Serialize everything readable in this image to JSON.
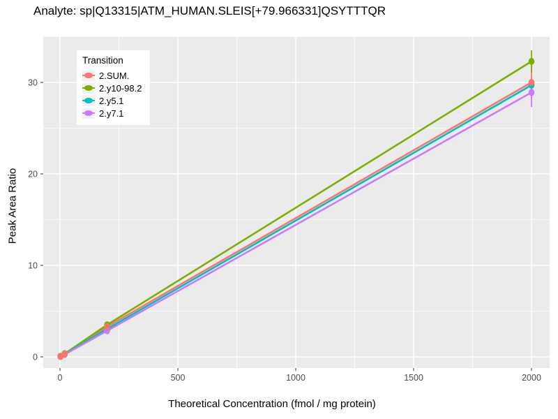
{
  "colors": {
    "panel_bg": "#EBEBEB",
    "grid": "#FFFFFF",
    "tick_label": "#4D4D4D",
    "text": "#000000",
    "legend_bg": "#FFFFFF",
    "legend_key_bg": "#F2F2F2"
  },
  "chart_data": {
    "type": "line",
    "title": "Analyte: sp|Q13315|ATM_HUMAN.SLEIS[+79.966331]QSYTTTQR",
    "xlabel": "Theoretical Concentration (fmol / mg protein)",
    "ylabel": "Peak Area Ratio",
    "xlim": [
      -71,
      2075
    ],
    "ylim": [
      -1.2,
      35.1
    ],
    "x_ticks": [
      0,
      500,
      1000,
      1500,
      2000
    ],
    "y_ticks": [
      0,
      10,
      20,
      30
    ],
    "x_minor_ticks": [
      250,
      750,
      1250,
      1750
    ],
    "y_minor_ticks": [
      5,
      15,
      25,
      35
    ],
    "grid": "major-and-minor-white-on-gray",
    "legend": {
      "title": "Transition",
      "position": "top-left-inside"
    },
    "x": [
      2,
      20,
      200,
      2000
    ],
    "series": [
      {
        "name": "2.SUM.",
        "color": "#F8766D",
        "values": [
          0.05,
          0.3,
          3.3,
          30.0
        ],
        "errors": [
          null,
          null,
          [
            3.0,
            3.6
          ],
          [
            28.1,
            31.9
          ]
        ]
      },
      {
        "name": "2.y10-98.2",
        "color": "#7CAE00",
        "values": [
          0.06,
          0.35,
          3.5,
          32.3
        ],
        "errors": [
          null,
          null,
          [
            3.2,
            3.8
          ],
          [
            31.1,
            33.5
          ]
        ]
      },
      {
        "name": "2.y5.1",
        "color": "#00BFC4",
        "values": [
          0.05,
          0.28,
          3.05,
          29.7
        ],
        "errors": [
          null,
          null,
          [
            2.7,
            3.4
          ],
          [
            29.2,
            30.2
          ]
        ]
      },
      {
        "name": "2.y7.1",
        "color": "#C77CFF",
        "values": [
          0.04,
          0.26,
          2.85,
          28.9
        ],
        "errors": [
          null,
          null,
          [
            2.6,
            3.1
          ],
          [
            27.3,
            30.4
          ]
        ]
      }
    ]
  }
}
